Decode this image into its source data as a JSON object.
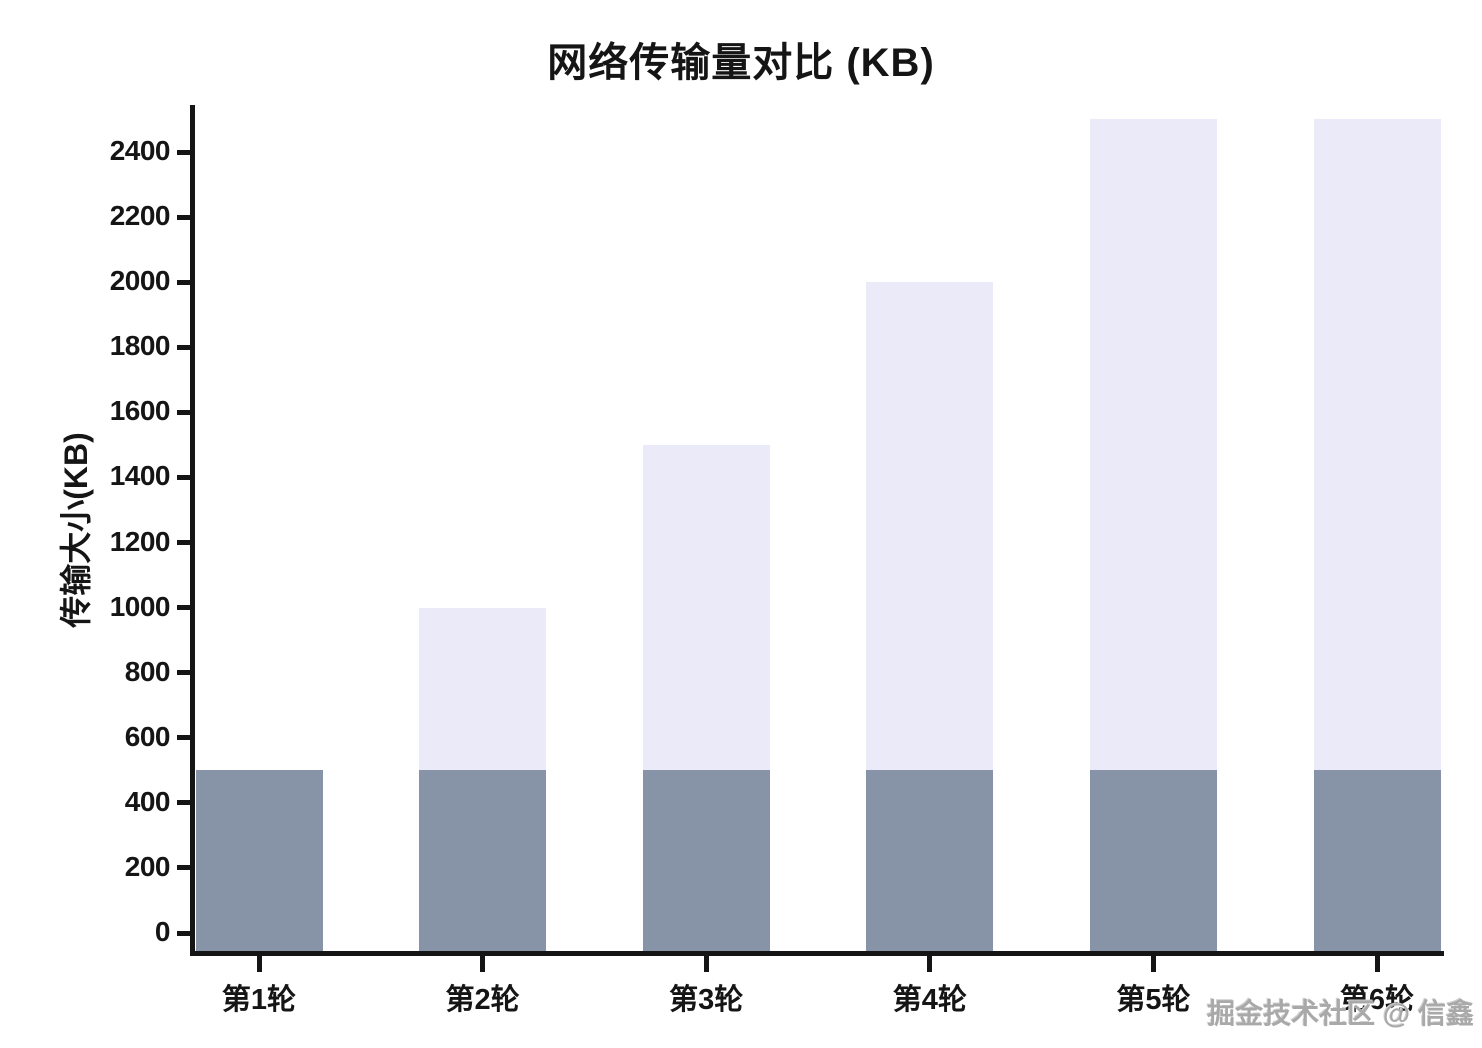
{
  "chart_data": {
    "type": "bar",
    "title": "网络传输量对比 (KB)",
    "ylabel": "传输大小(KB)",
    "xlabel": "",
    "categories": [
      "第1轮",
      "第2轮",
      "第3轮",
      "第4轮",
      "第5轮",
      "第6轮"
    ],
    "series": [
      {
        "name": "light",
        "color": "#EAEAF9",
        "values": [
          500,
          1000,
          1500,
          2000,
          2500,
          2500
        ]
      },
      {
        "name": "dark",
        "color": "#8793A6",
        "values": [
          500,
          500,
          500,
          500,
          500,
          500
        ]
      }
    ],
    "render": "overlay",
    "yticks": [
      0,
      200,
      400,
      600,
      800,
      1000,
      1200,
      1400,
      1600,
      1800,
      2000,
      2200,
      2400
    ],
    "ylim": [
      0,
      2545
    ],
    "grid": false,
    "legend": "none",
    "axis_color": "#151515"
  },
  "watermark": {
    "text": "掘金技术社区 @ 信鑫"
  }
}
